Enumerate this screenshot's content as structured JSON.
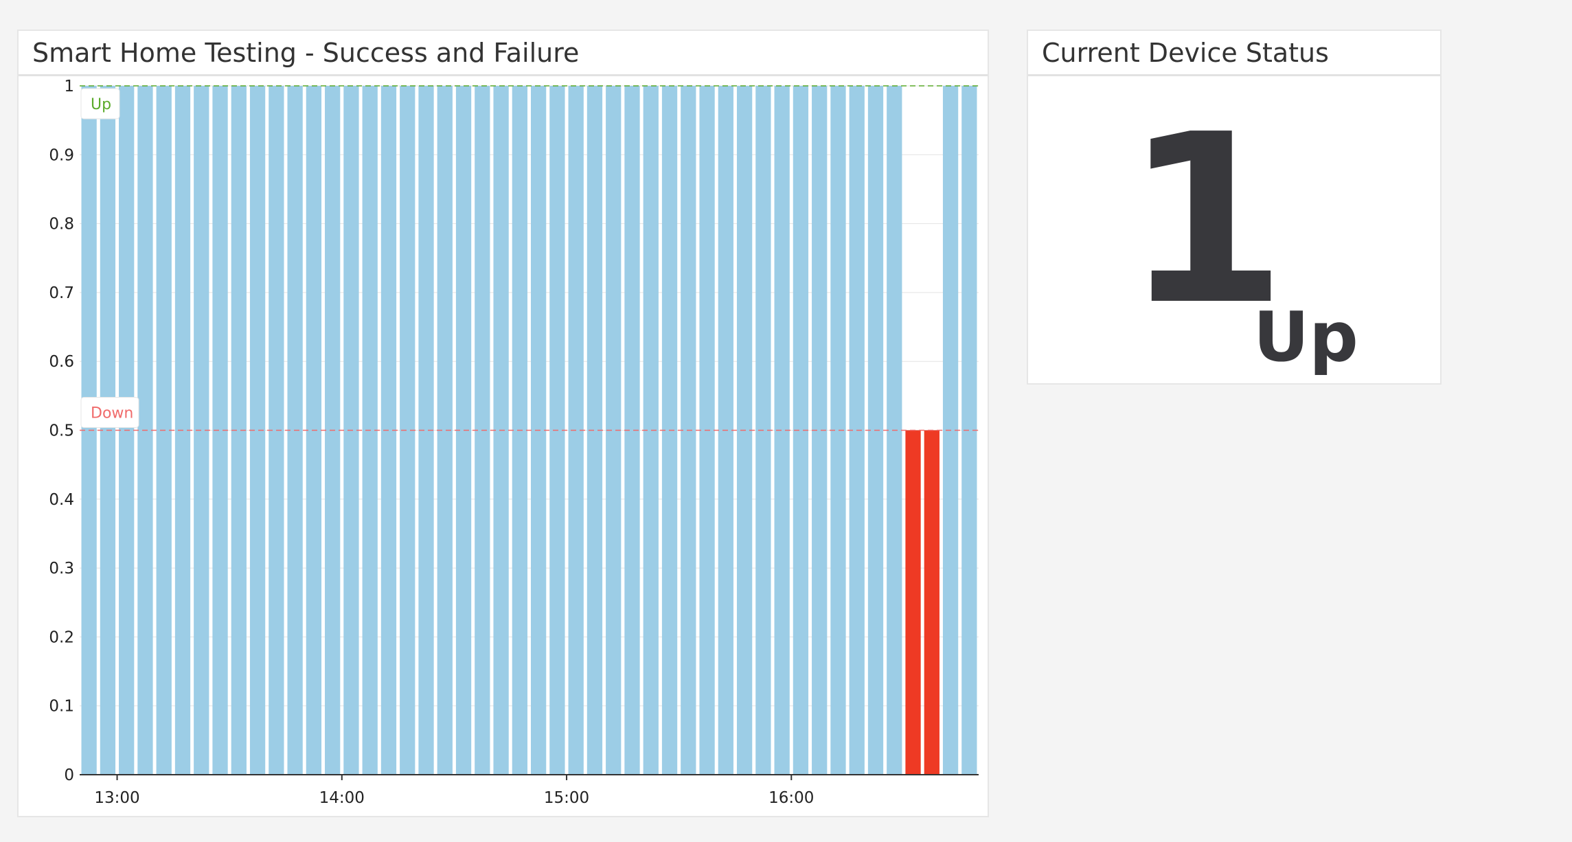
{
  "chart_widget": {
    "title": "Smart Home Testing - Success and Failure"
  },
  "status_widget": {
    "title": "Current Device Status",
    "value": "1",
    "unit": "Up"
  },
  "colors": {
    "ok_bar": "#9ccde6",
    "fail_bar": "#ee3a24",
    "up_marker": "#5aaa2a",
    "down_marker": "#f06b6b",
    "grid": "#e3e3e3",
    "axis": "#333333"
  },
  "chart_data": {
    "type": "bar",
    "title": "Smart Home Testing - Success and Failure",
    "xlabel": "",
    "ylabel": "",
    "ylim": [
      0,
      1
    ],
    "yticks": [
      "0",
      "0.1",
      "0.2",
      "0.3",
      "0.4",
      "0.5",
      "0.6",
      "0.7",
      "0.8",
      "0.9",
      "1"
    ],
    "xticks": [
      "13:00",
      "14:00",
      "15:00",
      "16:00"
    ],
    "xrange_minutes": [
      "12:50",
      "16:50"
    ],
    "bar_interval_minutes": 5,
    "values": [
      1,
      1,
      1,
      1,
      1,
      1,
      1,
      1,
      1,
      1,
      1,
      1,
      1,
      1,
      1,
      1,
      1,
      1,
      1,
      1,
      1,
      1,
      1,
      1,
      1,
      1,
      1,
      1,
      1,
      1,
      1,
      1,
      1,
      1,
      1,
      1,
      1,
      1,
      1,
      1,
      1,
      1,
      1,
      1,
      0.5,
      0.5,
      1,
      1
    ],
    "markers": [
      {
        "label": "Up",
        "value": 1,
        "color": "#5aaa2a"
      },
      {
        "label": "Down",
        "value": 0.5,
        "color": "#f06b6b"
      }
    ],
    "grid": true
  }
}
